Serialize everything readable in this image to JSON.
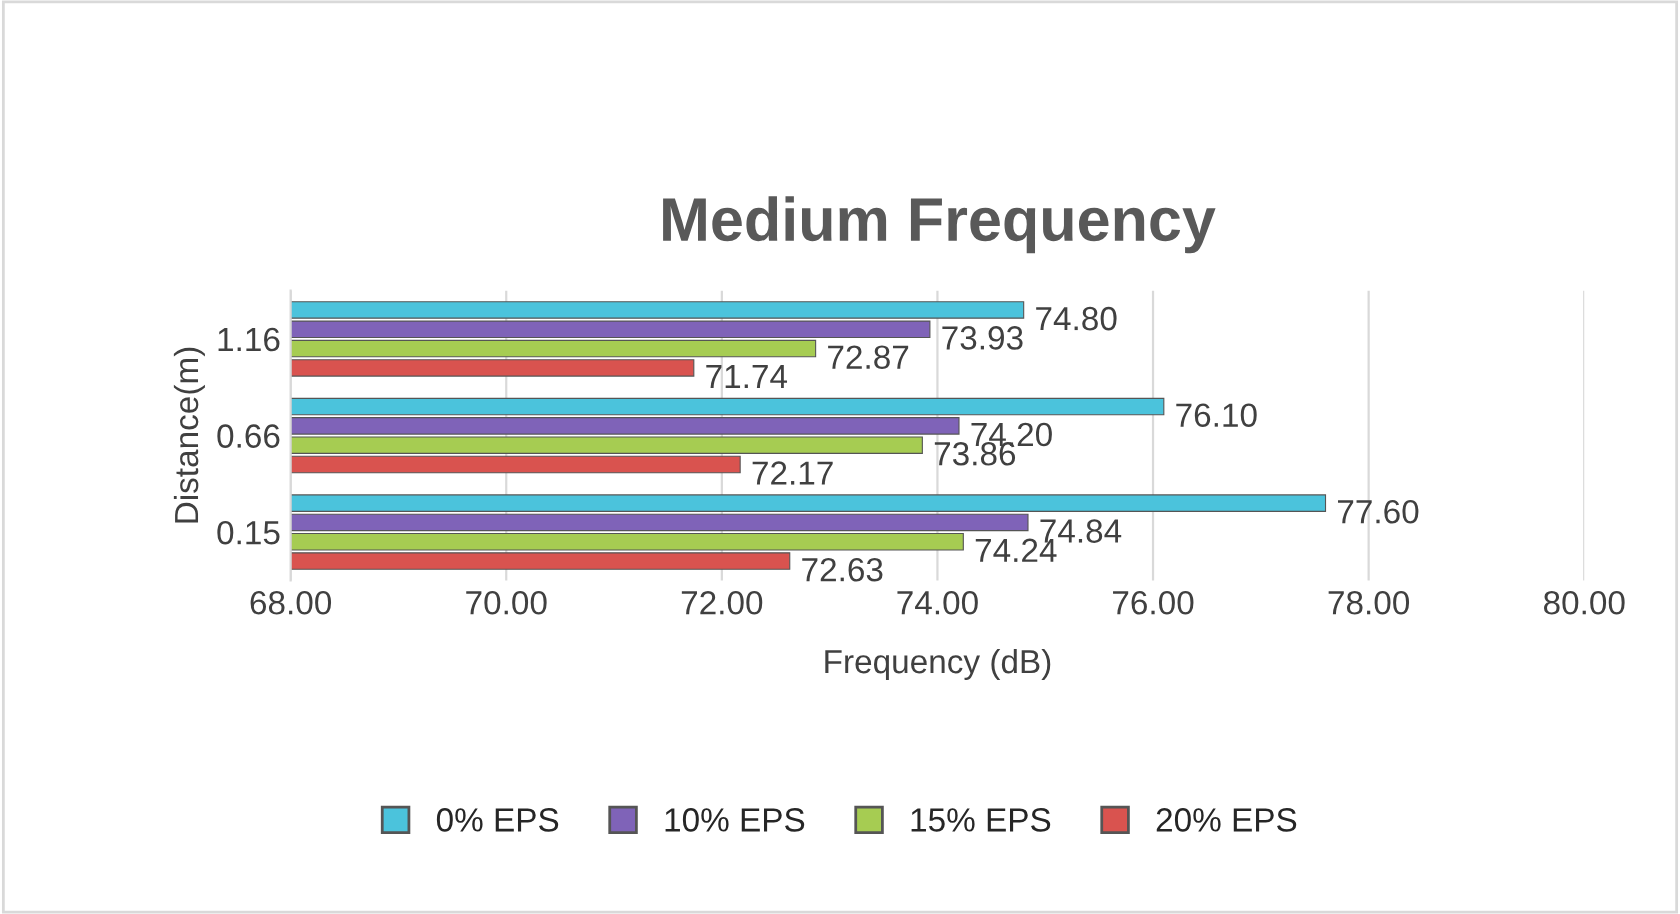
{
  "chart_data": {
    "type": "bar",
    "orientation": "horizontal",
    "title": "Medium Frequency",
    "xlabel": "Frequency (dB)",
    "ylabel": "Distance(m)",
    "categories": [
      "1.16",
      "0.66",
      "0.15"
    ],
    "series": [
      {
        "name": "0% EPS",
        "color": "#4bc3dc",
        "values": [
          74.8,
          76.1,
          77.6
        ],
        "value_labels": [
          "74.80",
          "76.10",
          "77.60"
        ]
      },
      {
        "name": "10% EPS",
        "color": "#7f63b8",
        "values": [
          73.93,
          74.2,
          74.84
        ],
        "value_labels": [
          "73.93",
          "74.20",
          "74.84"
        ]
      },
      {
        "name": "15% EPS",
        "color": "#a6cc52",
        "values": [
          72.87,
          73.86,
          74.24
        ],
        "value_labels": [
          "72.87",
          "73.86",
          "74.24"
        ]
      },
      {
        "name": "20% EPS",
        "color": "#d9534f",
        "values": [
          71.74,
          72.17,
          72.63
        ],
        "value_labels": [
          "71.74",
          "72.17",
          "72.63"
        ]
      }
    ],
    "xlim": [
      68,
      80
    ],
    "xticks": [
      {
        "value": 68,
        "label": "68.00"
      },
      {
        "value": 70,
        "label": "70.00"
      },
      {
        "value": 72,
        "label": "72.00"
      },
      {
        "value": 74,
        "label": "74.00"
      },
      {
        "value": 76,
        "label": "76.00"
      },
      {
        "value": 78,
        "label": "78.00"
      },
      {
        "value": 80,
        "label": "80.00"
      }
    ],
    "grid": "x",
    "legend": "bottom"
  }
}
